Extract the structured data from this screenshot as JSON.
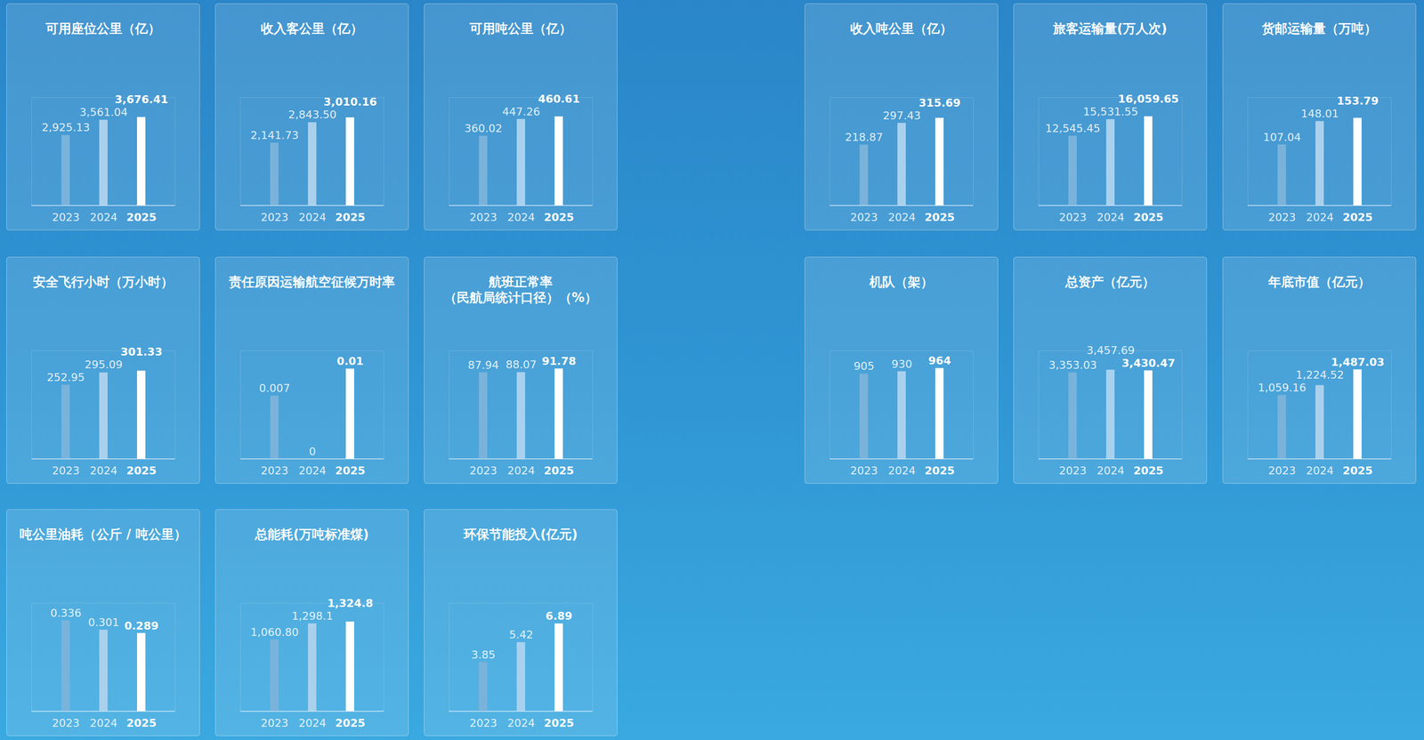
{
  "chart_data": [
    {
      "type": "bar",
      "title": "可用座位公里（亿）",
      "categories": [
        "2023",
        "2024",
        "2025"
      ],
      "values": [
        2925.13,
        3561.04,
        3676.41
      ],
      "value_labels": [
        "2,925.13",
        "3,561.04",
        "3,676.41"
      ],
      "colors": [
        "#79b3dc",
        "#a9d1ee",
        "#ffffff"
      ],
      "ylim": [
        0,
        4500
      ],
      "yticks": [],
      "data_labels": true,
      "tick_labels": "x",
      "grid": false
    },
    {
      "type": "bar",
      "title": "收入客公里（亿）",
      "categories": [
        "2023",
        "2024",
        "2025"
      ],
      "values": [
        2141.73,
        2843.5,
        3010.16
      ],
      "value_labels": [
        "2,141.73",
        "2,843.50",
        "3,010.16"
      ],
      "colors": [
        "#79b3dc",
        "#a9d1ee",
        "#ffffff"
      ],
      "ylim": [
        0,
        3700
      ],
      "yticks": [],
      "data_labels": true,
      "tick_labels": "x",
      "grid": false
    },
    {
      "type": "bar",
      "title": "可用吨公里（亿）",
      "categories": [
        "2023",
        "2024",
        "2025"
      ],
      "values": [
        360.02,
        447.26,
        460.61
      ],
      "value_labels": [
        "360.02",
        "447.26",
        "460.61"
      ],
      "colors": [
        "#79b3dc",
        "#a9d1ee",
        "#ffffff"
      ],
      "ylim": [
        0,
        560
      ],
      "yticks": [],
      "data_labels": true,
      "tick_labels": "x",
      "grid": false
    },
    {
      "type": "bar",
      "title": "收入吨公里（亿）",
      "categories": [
        "2023",
        "2024",
        "2025"
      ],
      "values": [
        218.87,
        297.43,
        315.69
      ],
      "value_labels": [
        "218.87",
        "297.43",
        "315.69"
      ],
      "colors": [
        "#79b3dc",
        "#a9d1ee",
        "#ffffff"
      ],
      "ylim": [
        0,
        390
      ],
      "yticks": [],
      "data_labels": true,
      "tick_labels": "x",
      "grid": false
    },
    {
      "type": "bar",
      "title": "旅客运输量(万人次)",
      "categories": [
        "2023",
        "2024",
        "2025"
      ],
      "values": [
        12545.45,
        15531.55,
        16059.65
      ],
      "value_labels": [
        "12,545.45",
        "15,531.55",
        "16,059.65"
      ],
      "colors": [
        "#79b3dc",
        "#a9d1ee",
        "#ffffff"
      ],
      "ylim": [
        0,
        19500
      ],
      "yticks": [],
      "data_labels": true,
      "tick_labels": "x",
      "grid": false
    },
    {
      "type": "bar",
      "title": "货邮运输量（万吨）",
      "categories": [
        "2023",
        "2024",
        "2025"
      ],
      "values": [
        107.04,
        148.01,
        153.79
      ],
      "value_labels": [
        "107.04",
        "148.01",
        "153.79"
      ],
      "colors": [
        "#79b3dc",
        "#a9d1ee",
        "#ffffff"
      ],
      "ylim": [
        0,
        190
      ],
      "yticks": [],
      "data_labels": true,
      "tick_labels": "x",
      "grid": false
    },
    {
      "type": "bar",
      "title": "安全飞行小时（万小时）",
      "categories": [
        "2023",
        "2024",
        "2025"
      ],
      "values": [
        252.95,
        295.09,
        301.33
      ],
      "value_labels": [
        "252.95",
        "295.09",
        "301.33"
      ],
      "colors": [
        "#79b3dc",
        "#a9d1ee",
        "#ffffff"
      ],
      "ylim": [
        0,
        370
      ],
      "yticks": [],
      "data_labels": true,
      "tick_labels": "x",
      "grid": false
    },
    {
      "type": "bar",
      "title": "责任原因运输航空征候万时率",
      "categories": [
        "2023",
        "2024",
        "2025"
      ],
      "values": [
        0.007,
        0,
        0.01
      ],
      "value_labels": [
        "0.007",
        "0",
        "0.01"
      ],
      "colors": [
        "#79b3dc",
        "#a9d1ee",
        "#ffffff"
      ],
      "ylim": [
        0,
        0.012
      ],
      "yticks": [],
      "data_labels": true,
      "tick_labels": "x",
      "grid": false
    },
    {
      "type": "bar",
      "title": "航班正常率（民航局统计口径）（%）",
      "categories": [
        "2023",
        "2024",
        "2025"
      ],
      "values": [
        87.94,
        88.07,
        91.78
      ],
      "value_labels": [
        "87.94",
        "88.07",
        "91.78"
      ],
      "colors": [
        "#79b3dc",
        "#a9d1ee",
        "#ffffff"
      ],
      "ylim": [
        0,
        110
      ],
      "yticks": [],
      "data_labels": true,
      "tick_labels": "x",
      "grid": false
    },
    {
      "type": "bar",
      "title": "机队（架）",
      "categories": [
        "2023",
        "2024",
        "2025"
      ],
      "values": [
        905,
        930,
        964
      ],
      "value_labels": [
        "905",
        "930",
        "964"
      ],
      "colors": [
        "#79b3dc",
        "#a9d1ee",
        "#ffffff"
      ],
      "ylim": [
        0,
        1150
      ],
      "yticks": [],
      "data_labels": true,
      "tick_labels": "x",
      "grid": false
    },
    {
      "type": "bar",
      "title": "总资产（亿元）",
      "categories": [
        "2023",
        "2024",
        "2025"
      ],
      "values": [
        3353.03,
        3457.69,
        3430.47
      ],
      "value_labels": [
        "3,353.03",
        "3,457.69",
        "3,430.47"
      ],
      "colors": [
        "#79b3dc",
        "#a9d1ee",
        "#ffffff"
      ],
      "ylim": [
        0,
        4200
      ],
      "yticks": [],
      "data_labels": true,
      "tick_labels": "x",
      "grid": false
    },
    {
      "type": "bar",
      "title": "年底市值（亿元）",
      "categories": [
        "2023",
        "2024",
        "2025"
      ],
      "values": [
        1059.16,
        1224.52,
        1487.03
      ],
      "value_labels": [
        "1,059.16",
        "1,224.52",
        "1,487.03"
      ],
      "colors": [
        "#79b3dc",
        "#a9d1ee",
        "#ffffff"
      ],
      "ylim": [
        0,
        1800
      ],
      "yticks": [],
      "data_labels": true,
      "tick_labels": "x",
      "grid": false
    },
    {
      "type": "bar",
      "title": "吨公里油耗（公斤 / 吨公里）",
      "categories": [
        "2023",
        "2024",
        "2025"
      ],
      "values": [
        0.336,
        0.301,
        0.289
      ],
      "value_labels": [
        "0.336",
        "0.301",
        "0.289"
      ],
      "colors": [
        "#79b3dc",
        "#a9d1ee",
        "#ffffff"
      ],
      "ylim": [
        0,
        0.4
      ],
      "yticks": [],
      "data_labels": true,
      "tick_labels": "x",
      "grid": false
    },
    {
      "type": "bar",
      "title": "总能耗(万吨标准煤)",
      "categories": [
        "2023",
        "2024",
        "2025"
      ],
      "values": [
        1060.8,
        1298.1,
        1324.8
      ],
      "value_labels": [
        "1,060.80",
        "1,298.1",
        "1,324.8"
      ],
      "colors": [
        "#79b3dc",
        "#a9d1ee",
        "#ffffff"
      ],
      "ylim": [
        0,
        1600
      ],
      "yticks": [],
      "data_labels": true,
      "tick_labels": "x",
      "grid": false
    },
    {
      "type": "bar",
      "title": "环保节能投入(亿元)",
      "categories": [
        "2023",
        "2024",
        "2025"
      ],
      "values": [
        3.85,
        5.42,
        6.89
      ],
      "value_labels": [
        "3.85",
        "5.42",
        "6.89"
      ],
      "colors": [
        "#79b3dc",
        "#a9d1ee",
        "#ffffff"
      ],
      "ylim": [
        0,
        8.5
      ],
      "yticks": [],
      "data_labels": true,
      "tick_labels": "x",
      "grid": false
    }
  ]
}
